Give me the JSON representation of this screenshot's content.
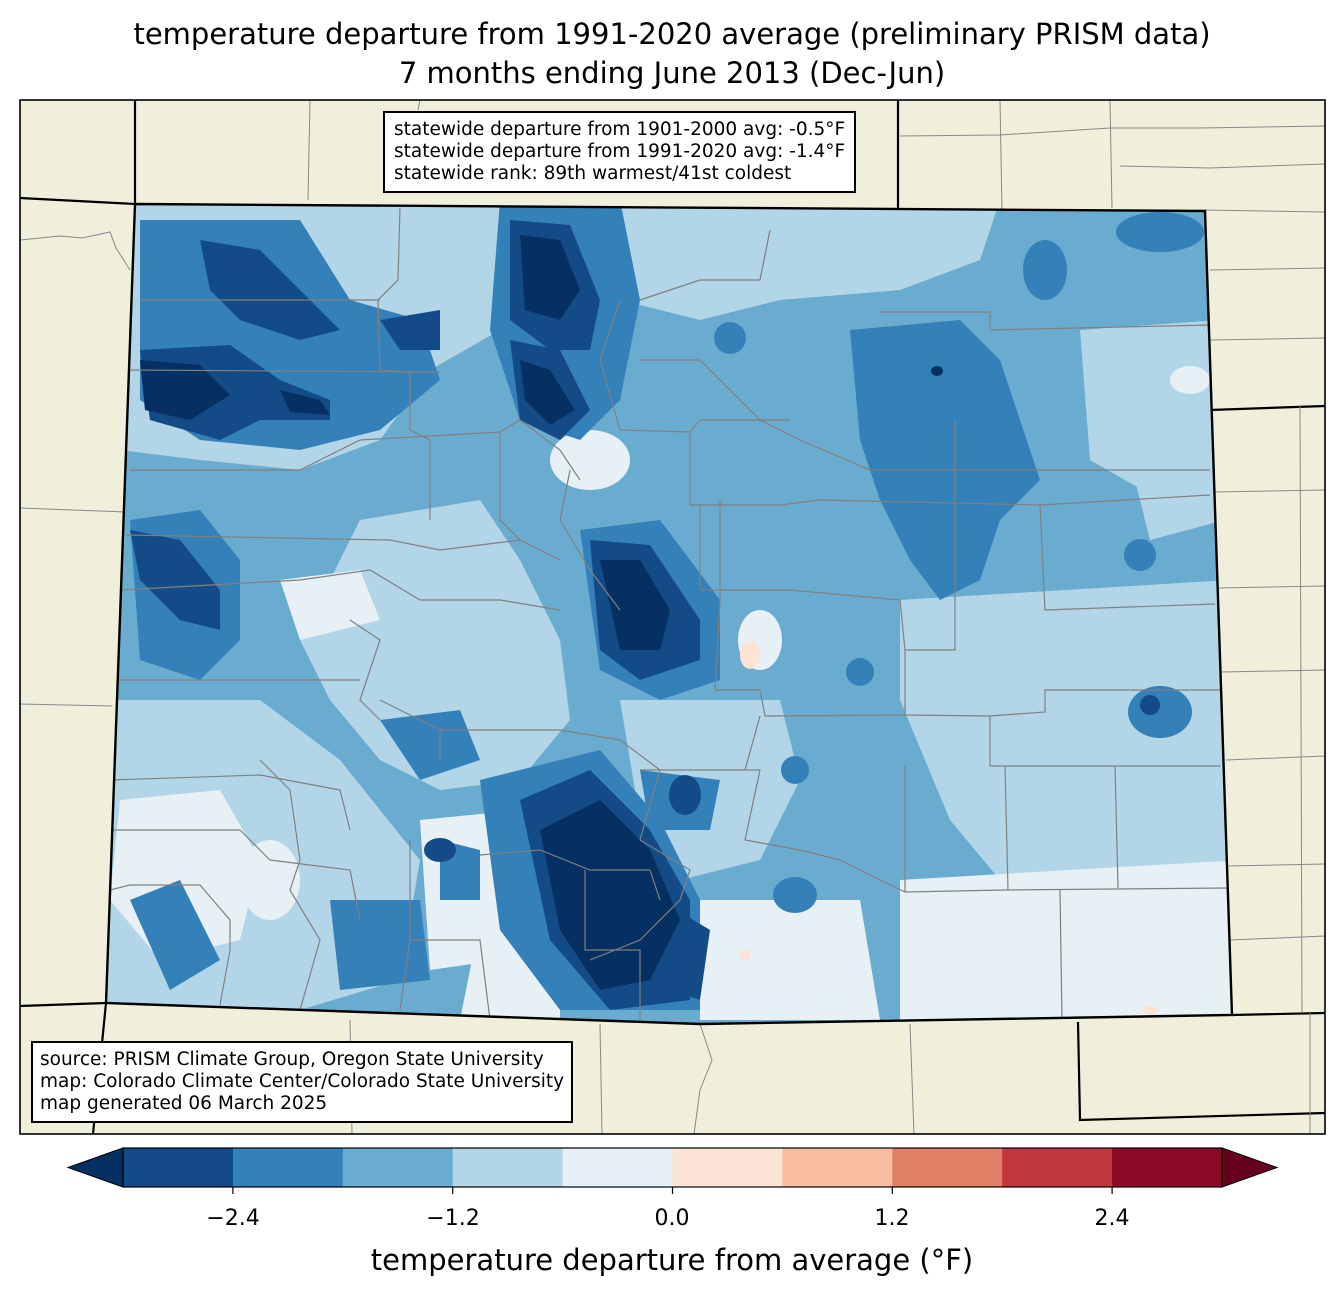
{
  "title_line1": "temperature departure from 1991-2020 average (preliminary PRISM data)",
  "title_line2": "7 months ending June 2013 (Dec-Jun)",
  "stats": {
    "line1": "statewide departure from 1901-2000 avg: -0.5°F",
    "line2": "statewide departure from 1991-2020 avg: -1.4°F",
    "line3": "statewide rank: 89th warmest/41st coldest"
  },
  "source": {
    "line1": "source: PRISM Climate Group, Oregon State University",
    "line2": "map: Colorado Climate Center/Colorado State University",
    "line3": "map generated 06 March 2025"
  },
  "colorbar": {
    "label": "temperature departure from average (°F)",
    "ticks": [
      "−2.4",
      "−1.2",
      "0.0",
      "1.2",
      "2.4"
    ],
    "bins": [
      -3.0,
      -2.4,
      -1.8,
      -1.2,
      -0.6,
      0.0,
      0.6,
      1.2,
      1.8,
      2.4,
      3.0
    ],
    "under_color": "#053061",
    "over_color": "#67001f",
    "colors": [
      "#134b87",
      "#3480b9",
      "#6aacd0",
      "#b2d5e8",
      "#e7f0f4",
      "#fbe3d6",
      "#f8bca0",
      "#e17f66",
      "#c0383d",
      "#8b0a26"
    ]
  },
  "map_colors": {
    "land": "#efefdc",
    "darkest": "#053061",
    "dark": "#134b87",
    "mid_dark": "#3480b9",
    "mid": "#6aacd0",
    "light": "#b2d5e8",
    "lightest": "#e7f0f4",
    "warm": "#fbe3d6"
  }
}
